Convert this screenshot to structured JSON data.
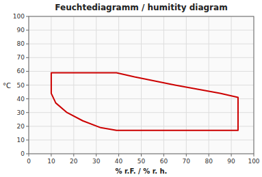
{
  "chart_data": {
    "type": "line",
    "title": "Feuchtediagramm / humitity diagram",
    "xlabel": "% r.F. / % r. h.",
    "ylabel": "°C",
    "xlim": [
      0,
      100
    ],
    "ylim": [
      0,
      100
    ],
    "xticks": [
      0,
      10,
      20,
      30,
      40,
      50,
      60,
      70,
      80,
      90,
      100
    ],
    "yticks": [
      0,
      10,
      20,
      30,
      40,
      50,
      60,
      70,
      80,
      90,
      100
    ],
    "grid": true,
    "color": "#cc0000",
    "x": [
      10,
      10,
      11,
      14,
      17,
      21,
      26,
      31,
      36,
      39,
      47,
      56,
      65,
      75,
      85,
      93,
      93,
      85,
      75,
      65,
      55,
      45,
      39,
      32,
      24,
      17,
      12,
      10
    ],
    "values": [
      44,
      59,
      59,
      59,
      59,
      59,
      59,
      59,
      59,
      59,
      56,
      53,
      50,
      47,
      44,
      41,
      17,
      17,
      17,
      17,
      17,
      17,
      17,
      19,
      24,
      30,
      37,
      44
    ]
  }
}
